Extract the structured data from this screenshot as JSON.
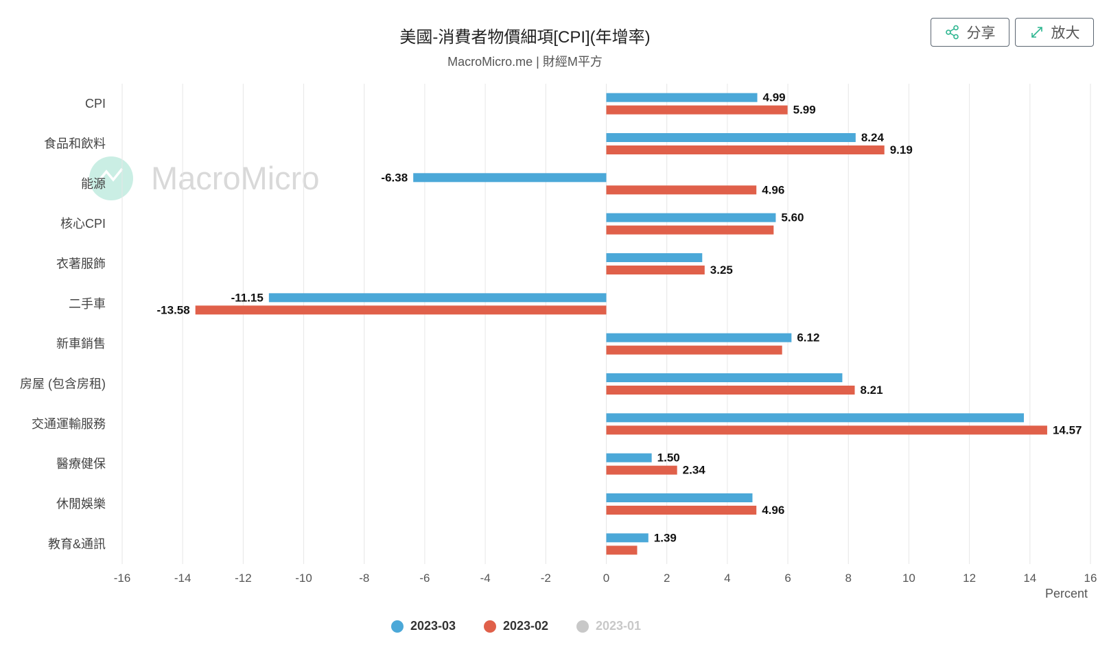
{
  "header": {
    "title": "美國-消費者物價細項[CPI](年增率)",
    "subtitle": "MacroMicro.me | 財經M平方"
  },
  "toolbar": {
    "share_label": "分享",
    "zoom_label": "放大"
  },
  "watermark": {
    "text": "MacroMicro",
    "color": "#43c3a0"
  },
  "legend": [
    {
      "label": "2023-03",
      "color": "#4ba8d8",
      "visible": true
    },
    {
      "label": "2023-02",
      "color": "#e0604a",
      "visible": true
    },
    {
      "label": "2023-01",
      "color": "#c8c8c8",
      "visible": false
    }
  ],
  "chart_data": {
    "type": "bar",
    "orientation": "horizontal",
    "title": "美國-消費者物價細項[CPI](年增率)",
    "subtitle": "MacroMicro.me | 財經M平方",
    "xlabel": "Percent",
    "ylabel": "",
    "xlim": [
      -16,
      16
    ],
    "xticks": [
      -16,
      -14,
      -12,
      -10,
      -8,
      -6,
      -4,
      -2,
      0,
      2,
      4,
      6,
      8,
      10,
      12,
      14,
      16
    ],
    "grid": true,
    "legend_position": "bottom-center",
    "categories": [
      "CPI",
      "食品和飲料",
      "能源",
      "核心CPI",
      "衣著服飾",
      "二手車",
      "新車銷售",
      "房屋 (包含房租)",
      "交通運輸服務",
      "醫療健保",
      "休閒娛樂",
      "教育&通訊"
    ],
    "series": [
      {
        "name": "2023-03",
        "color": "#4ba8d8",
        "values": [
          4.99,
          8.24,
          -6.38,
          5.6,
          3.17,
          -11.15,
          6.12,
          7.8,
          13.8,
          1.5,
          4.83,
          1.39
        ],
        "labels": [
          "4.99",
          "8.24",
          "-6.38",
          "5.60",
          "",
          "-11.15",
          "6.12",
          "",
          "",
          "1.50",
          "",
          "1.39"
        ]
      },
      {
        "name": "2023-02",
        "color": "#e0604a",
        "values": [
          5.99,
          9.19,
          4.96,
          5.53,
          3.25,
          -13.58,
          5.81,
          8.21,
          14.57,
          2.34,
          4.96,
          1.02
        ],
        "labels": [
          "5.99",
          "9.19",
          "4.96",
          "",
          "3.25",
          "-13.58",
          "",
          "8.21",
          "14.57",
          "2.34",
          "4.96",
          ""
        ]
      }
    ]
  }
}
